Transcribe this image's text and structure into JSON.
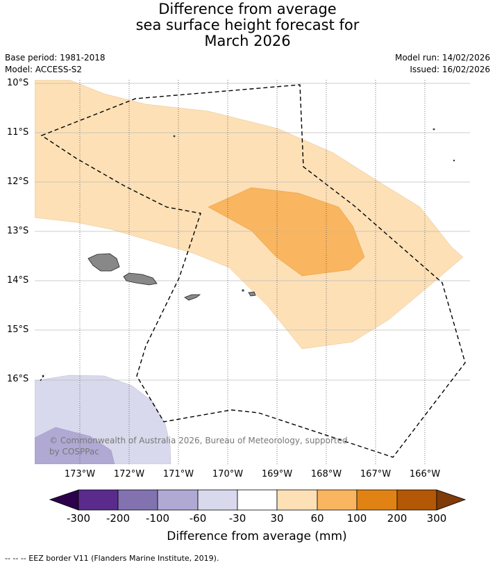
{
  "title": {
    "line1": "Difference from average",
    "line2": "sea surface height forecast for",
    "line3": "March 2026"
  },
  "meta": {
    "base_period": "Base period: 1981-2018",
    "model": "Model: ACCESS-S2",
    "model_run": "Model run: 14/02/2026",
    "issued": "Issued: 16/02/2026"
  },
  "map": {
    "lat_labels": [
      "10°S",
      "11°S",
      "12°S",
      "13°S",
      "14°S",
      "15°S",
      "16°S"
    ],
    "lon_labels": [
      "173°W",
      "172°W",
      "171°W",
      "170°W",
      "169°W",
      "168°W",
      "167°W",
      "166°W"
    ],
    "copyright": "© Commonwealth of Australia 2026, Bureau of Meteorology, supported by COSPPac",
    "colors": {
      "anom_30_60": "#fde0b6",
      "anom_60_100": "#f9b55f",
      "anom_neg_30_60": "#d8d9ec",
      "anom_neg_60_100": "#b0a9d4",
      "land": "#888888"
    }
  },
  "colorbar": {
    "title": "Difference from average (mm)",
    "ticks": [
      "-300",
      "-200",
      "-100",
      "-60",
      "-30",
      "30",
      "60",
      "100",
      "200",
      "300"
    ],
    "colors": [
      "#2d004b",
      "#5a2b8c",
      "#8273b0",
      "#b0a9d4",
      "#d8d9ec",
      "#ffffff",
      "#fde0b6",
      "#f9b55f",
      "#e08214",
      "#b35806",
      "#7f3b08"
    ]
  },
  "footer": "-- -- -- EEZ border V11 (Flanders Marine Institute, 2019)."
}
